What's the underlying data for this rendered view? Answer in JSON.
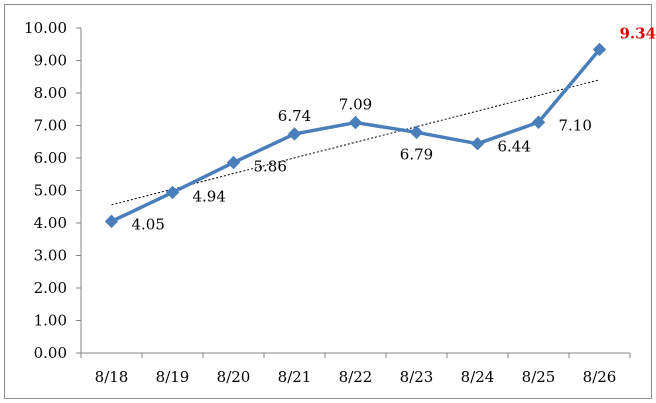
{
  "chart_data": {
    "type": "line",
    "title": "",
    "xlabel": "",
    "ylabel": "",
    "categories": [
      "8/18",
      "8/19",
      "8/20",
      "8/21",
      "8/22",
      "8/23",
      "8/24",
      "8/25",
      "8/26"
    ],
    "series": [
      {
        "values": [
          4.05,
          4.94,
          5.86,
          6.74,
          7.09,
          6.79,
          6.44,
          7.1,
          9.34
        ],
        "data_labels": [
          "4.05",
          "4.94",
          "5.86",
          "6.74",
          "7.09",
          "6.79",
          "6.44",
          "7.10",
          "9.34"
        ],
        "color": "#4a7ebb",
        "marker": "diamond"
      }
    ],
    "trendline": {
      "type": "linear",
      "style": "dotted",
      "color": "#000000"
    },
    "highlight": {
      "index": 8,
      "color": "#e00000"
    },
    "ylim": [
      0,
      10
    ],
    "y_ticks": [
      "0.00",
      "1.00",
      "2.00",
      "3.00",
      "4.00",
      "5.00",
      "6.00",
      "7.00",
      "8.00",
      "9.00",
      "10.00"
    ],
    "grid": false,
    "legend": "none"
  }
}
